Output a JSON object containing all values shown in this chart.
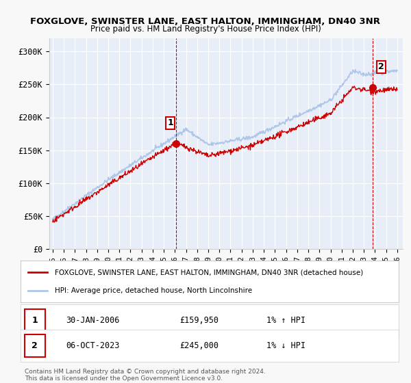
{
  "title1": "FOXGLOVE, SWINSTER LANE, EAST HALTON, IMMINGHAM, DN40 3NR",
  "title2": "Price paid vs. HM Land Registry's House Price Index (HPI)",
  "ylabel_ticks": [
    "£0",
    "£50K",
    "£100K",
    "£150K",
    "£200K",
    "£250K",
    "£300K"
  ],
  "ytick_values": [
    0,
    50000,
    100000,
    150000,
    200000,
    250000,
    300000
  ],
  "ylim": [
    0,
    320000
  ],
  "xlim_start": 1995.0,
  "xlim_end": 2026.5,
  "sale1_x": 2006.08,
  "sale1_y": 159950,
  "sale1_label": "1",
  "sale2_x": 2023.76,
  "sale2_y": 245000,
  "sale2_label": "2",
  "legend_line1": "FOXGLOVE, SWINSTER LANE, EAST HALTON, IMMINGHAM, DN40 3NR (detached house)",
  "legend_line2": "HPI: Average price, detached house, North Lincolnshire",
  "table_row1_num": "1",
  "table_row1_date": "30-JAN-2006",
  "table_row1_price": "£159,950",
  "table_row1_hpi": "1% ↑ HPI",
  "table_row2_num": "2",
  "table_row2_date": "06-OCT-2023",
  "table_row2_price": "£245,000",
  "table_row2_hpi": "1% ↓ HPI",
  "footnote": "Contains HM Land Registry data © Crown copyright and database right 2024.\nThis data is licensed under the Open Government Licence v3.0.",
  "hpi_color": "#aec6e8",
  "sale_line_color": "#cc0000",
  "marker_color": "#cc0000",
  "vline_color": "#cc0000",
  "grid_color": "#ffffff",
  "plot_bg": "#e8eef8"
}
